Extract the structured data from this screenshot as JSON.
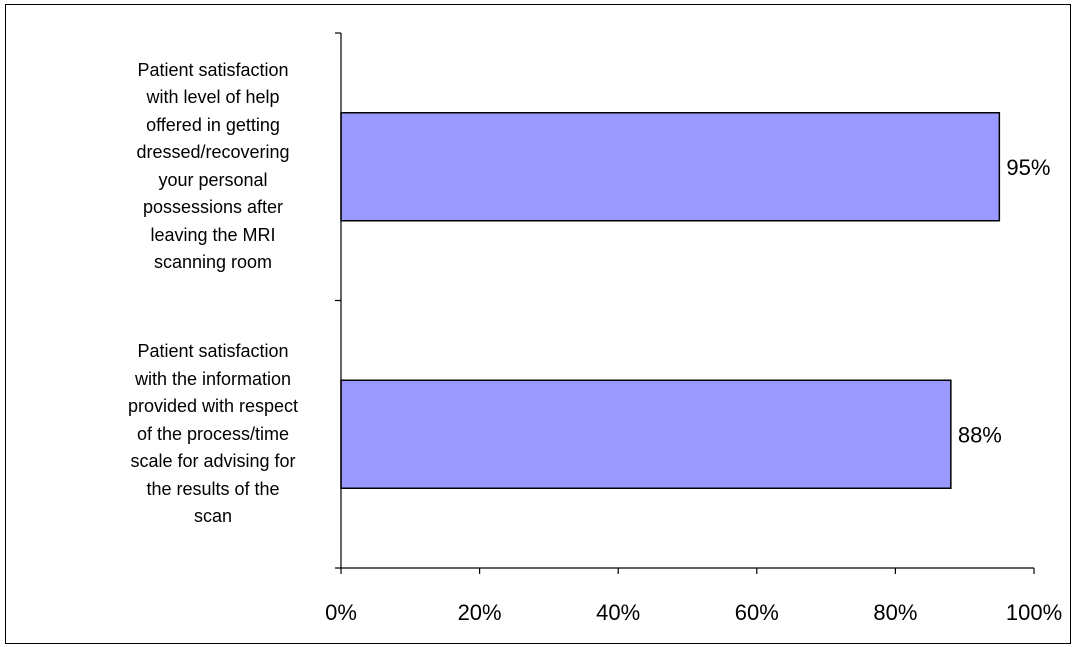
{
  "chart_data": {
    "type": "bar",
    "orientation": "horizontal",
    "categories": [
      "Patient satisfaction with level of help offered in getting dressed/recovering your personal possessions after leaving the MRI scanning room",
      "Patient satisfaction with the information provided with respect of the process/time scale for advising for the results of the scan"
    ],
    "category_lines": [
      [
        "Patient satisfaction",
        "with level of help",
        "offered in getting",
        "dressed/recovering",
        "your personal",
        "possessions after",
        "leaving the MRI",
        "scanning room"
      ],
      [
        "Patient satisfaction",
        "with the information",
        "provided with respect",
        "of the process/time",
        "scale for advising for",
        "the results of the",
        "scan"
      ]
    ],
    "values": [
      95,
      88
    ],
    "data_labels": [
      "95%",
      "88%"
    ],
    "xlim": [
      0,
      100
    ],
    "x_ticks": [
      0,
      20,
      40,
      60,
      80,
      100
    ],
    "x_tick_labels": [
      "0%",
      "20%",
      "40%",
      "60%",
      "80%",
      "100%"
    ],
    "title": "",
    "xlabel": "",
    "ylabel": "",
    "grid": false,
    "legend": "none",
    "colors": {
      "bar_fill": "#9999ff",
      "bar_stroke": "#000000",
      "axis": "#000000",
      "border": "#000000"
    }
  }
}
